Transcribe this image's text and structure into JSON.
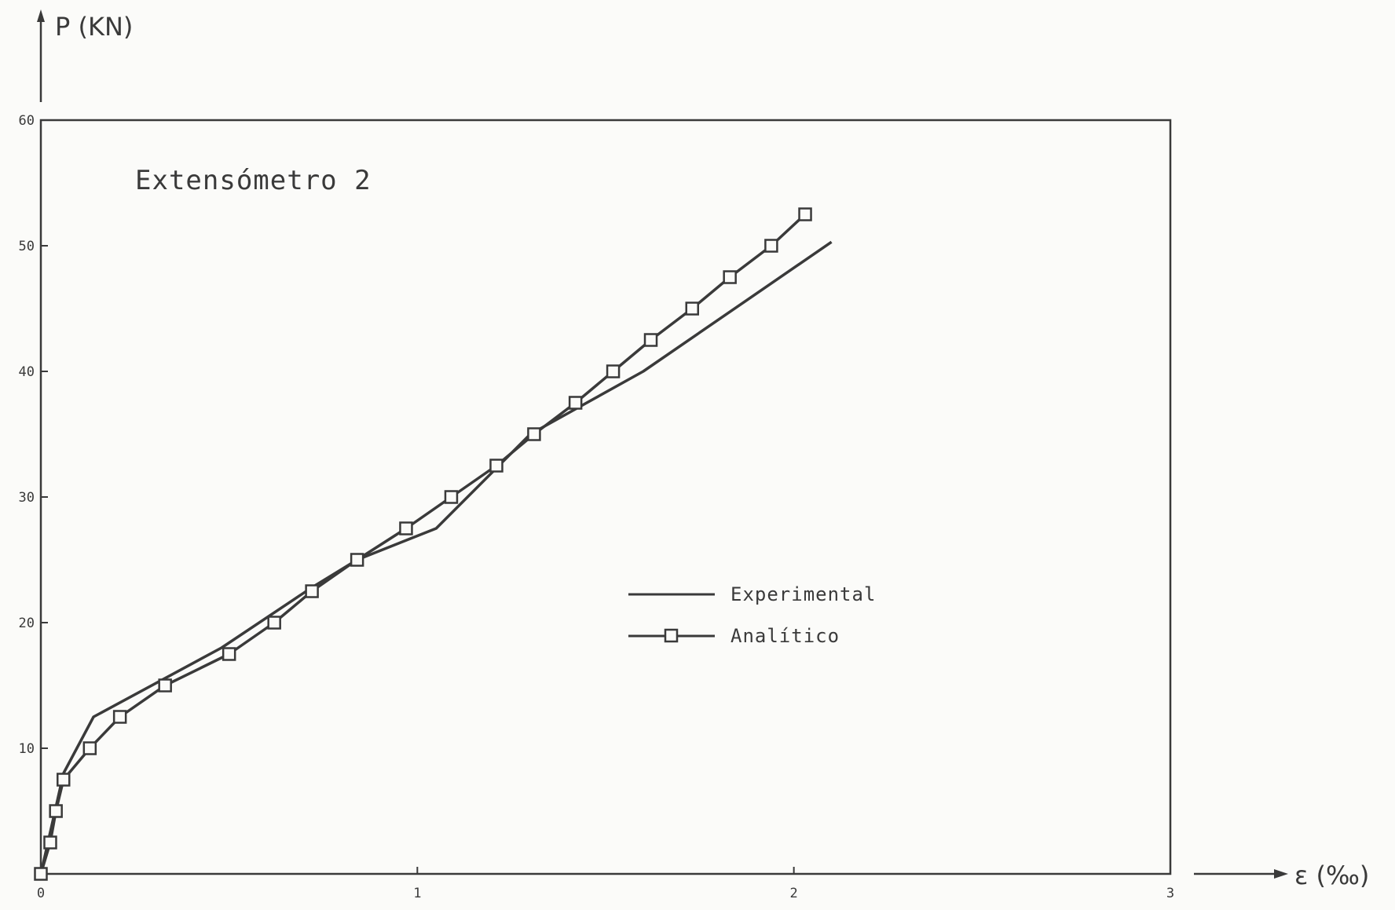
{
  "chart_data": {
    "type": "line",
    "title": "Extensómetro 2",
    "xlabel": "ε (‰)",
    "ylabel": "P (KN)",
    "xlim": [
      0,
      3
    ],
    "ylim": [
      0,
      60
    ],
    "x_ticks": [
      "0",
      "1",
      "2",
      "3"
    ],
    "y_ticks": [
      "10",
      "20",
      "30",
      "40",
      "50",
      "60"
    ],
    "grid": false,
    "legend_position": "center-right",
    "series": [
      {
        "name": "Experimental",
        "marker": "none",
        "color": "#3a3a3a",
        "x": [
          0,
          0.06,
          0.14,
          0.48,
          0.72,
          0.84,
          1.05,
          1.3,
          1.6,
          2.1
        ],
        "y": [
          0,
          8,
          12.5,
          18,
          22.8,
          25,
          27.5,
          35,
          40,
          50.3
        ]
      },
      {
        "name": "Analítico",
        "marker": "square",
        "color": "#3a3a3a",
        "x": [
          0,
          0.025,
          0.04,
          0.06,
          0.13,
          0.21,
          0.33,
          0.5,
          0.62,
          0.72,
          0.84,
          0.97,
          1.09,
          1.21,
          1.31,
          1.42,
          1.52,
          1.62,
          1.73,
          1.83,
          1.94,
          2.03
        ],
        "y": [
          0,
          2.5,
          5,
          7.5,
          10,
          12.5,
          15,
          17.5,
          20,
          22.5,
          25,
          27.5,
          30,
          32.5,
          35,
          37.5,
          40,
          42.5,
          45,
          47.5,
          50,
          52.5
        ]
      }
    ]
  }
}
